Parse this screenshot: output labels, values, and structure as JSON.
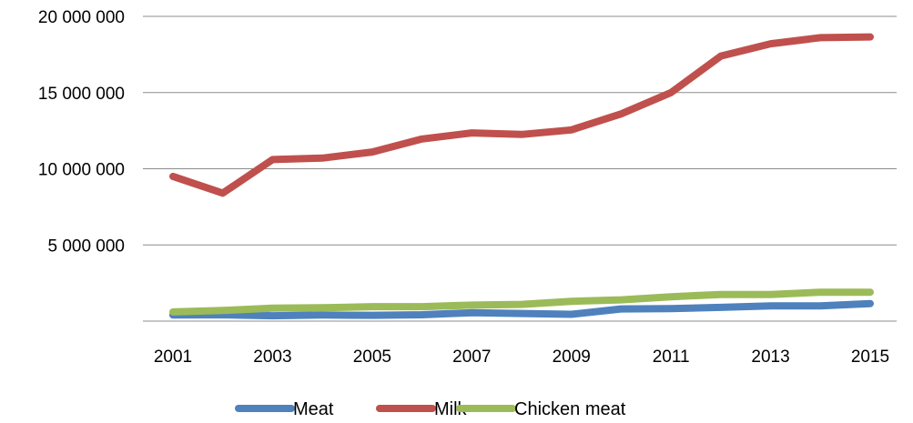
{
  "chart_data": {
    "type": "line",
    "x": [
      "2001",
      "2002",
      "2003",
      "2004",
      "2005",
      "2006",
      "2007",
      "2008",
      "2009",
      "2010",
      "2011",
      "2012",
      "2013",
      "2014",
      "2015"
    ],
    "x_tick_labels": [
      "2001",
      "2003",
      "2005",
      "2007",
      "2009",
      "2011",
      "2013",
      "2015"
    ],
    "y_tick_labels": [
      "20 000 000",
      "15 000 000",
      "10 000 000",
      "5 000 000"
    ],
    "ylim": [
      0,
      20000000
    ],
    "y_ticks": [
      5000000,
      10000000,
      15000000,
      20000000
    ],
    "grid": true,
    "legend_position": "bottom",
    "series": [
      {
        "name": "Meat",
        "color": "#4F81BD",
        "values": [
          400000,
          420000,
          350000,
          400000,
          380000,
          420000,
          550000,
          500000,
          450000,
          800000,
          820000,
          900000,
          1000000,
          1000000,
          1150000
        ]
      },
      {
        "name": "Milk",
        "color": "#C0504D",
        "values": [
          9500000,
          8400000,
          10600000,
          10700000,
          11100000,
          11950000,
          12350000,
          12250000,
          12550000,
          13600000,
          15000000,
          17400000,
          18200000,
          18600000,
          18650000
        ]
      },
      {
        "name": "Chicken meat",
        "color": "#9BBB59",
        "values": [
          600000,
          700000,
          850000,
          880000,
          950000,
          950000,
          1050000,
          1100000,
          1300000,
          1400000,
          1600000,
          1750000,
          1750000,
          1900000,
          1900000
        ]
      }
    ]
  }
}
